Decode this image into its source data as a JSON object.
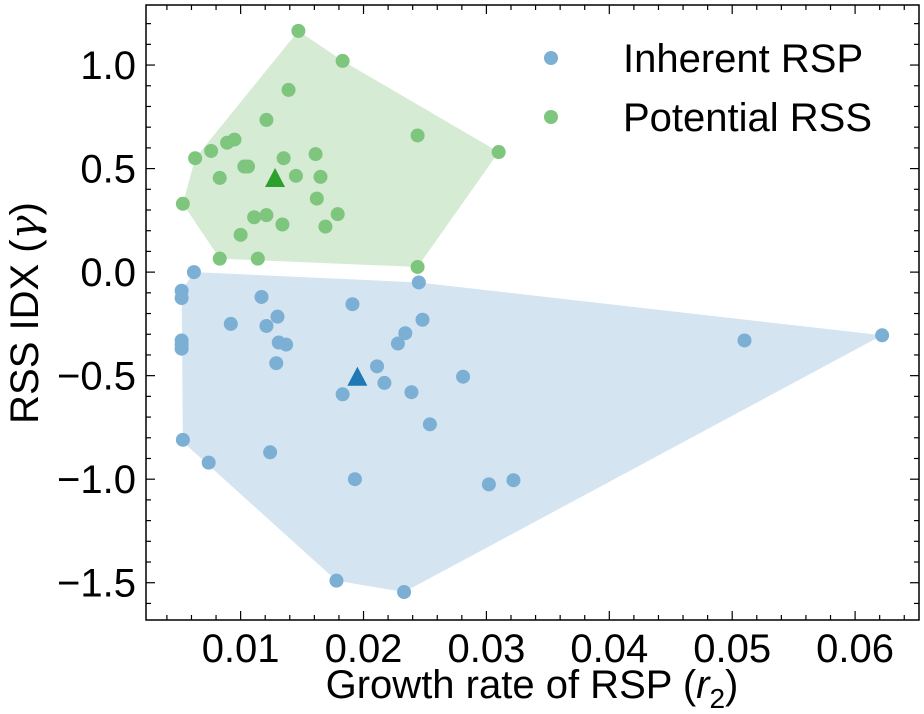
{
  "chart_data": {
    "type": "scatter",
    "xlabel": "Growth rate of RSP (r₂)",
    "xlabel_main": "Growth rate of RSP (",
    "xlabel_var": "r",
    "xlabel_sub": "2",
    "xlabel_close": ")",
    "ylabel": "RSS IDX (γ)",
    "ylabel_main": "RSS IDX (",
    "ylabel_var": "γ",
    "ylabel_close": ")",
    "xlim": [
      0.0023,
      0.0652
    ],
    "ylim": [
      -1.68,
      1.29
    ],
    "x_ticks": [
      0.01,
      0.02,
      0.03,
      0.04,
      0.05,
      0.06
    ],
    "x_tick_labels": [
      "0.01",
      "0.02",
      "0.03",
      "0.04",
      "0.05",
      "0.06"
    ],
    "y_ticks": [
      -1.5,
      -1.0,
      -0.5,
      0.0,
      0.5,
      1.0
    ],
    "y_tick_labels": [
      "−1.5",
      "−1.0",
      "−0.5",
      "0.0",
      "0.5",
      "1.0"
    ],
    "grid": false,
    "legend_position": "top-right",
    "series": [
      {
        "name": "Inherent RSP",
        "color": "#7bafd4",
        "hull_color": "#d4e4f1",
        "centroid_color": "#1f77b4",
        "centroid": [
          0.0195,
          -0.51
        ],
        "hull": [
          [
            0.0062,
            0.0
          ],
          [
            0.0245,
            -0.05
          ],
          [
            0.0622,
            -0.305
          ],
          [
            0.0233,
            -1.545
          ],
          [
            0.0178,
            -1.49
          ],
          [
            0.0053,
            -0.82
          ],
          [
            0.0052,
            -0.09
          ]
        ],
        "points": [
          [
            0.0062,
            0.0
          ],
          [
            0.0052,
            -0.09
          ],
          [
            0.0052,
            -0.125
          ],
          [
            0.0052,
            -0.33
          ],
          [
            0.0052,
            -0.35
          ],
          [
            0.0052,
            -0.37
          ],
          [
            0.0053,
            -0.81
          ],
          [
            0.0074,
            -0.92
          ],
          [
            0.0092,
            -0.25
          ],
          [
            0.0117,
            -0.12
          ],
          [
            0.0121,
            -0.26
          ],
          [
            0.0124,
            -0.87
          ],
          [
            0.0129,
            -0.44
          ],
          [
            0.013,
            -0.215
          ],
          [
            0.0131,
            -0.34
          ],
          [
            0.0137,
            -0.35
          ],
          [
            0.0178,
            -1.49
          ],
          [
            0.0183,
            -0.59
          ],
          [
            0.0191,
            -0.155
          ],
          [
            0.0193,
            -1.0
          ],
          [
            0.0211,
            -0.455
          ],
          [
            0.0217,
            -0.535
          ],
          [
            0.0228,
            -0.345
          ],
          [
            0.0234,
            -0.295
          ],
          [
            0.0233,
            -1.545
          ],
          [
            0.0239,
            -0.58
          ],
          [
            0.0245,
            -0.05
          ],
          [
            0.0248,
            -0.23
          ],
          [
            0.0254,
            -0.735
          ],
          [
            0.0281,
            -0.505
          ],
          [
            0.0302,
            -1.025
          ],
          [
            0.0322,
            -1.005
          ],
          [
            0.051,
            -0.33
          ],
          [
            0.0622,
            -0.305
          ]
        ]
      },
      {
        "name": "Potential RSS",
        "color": "#7ec57e",
        "hull_color": "#d5ebd4",
        "centroid_color": "#2ca02c",
        "centroid": [
          0.0128,
          0.45
        ],
        "hull": [
          [
            0.0147,
            1.165
          ],
          [
            0.0183,
            1.02
          ],
          [
            0.031,
            0.58
          ],
          [
            0.0244,
            0.025
          ],
          [
            0.0083,
            0.065
          ],
          [
            0.0053,
            0.33
          ],
          [
            0.0063,
            0.55
          ]
        ],
        "points": [
          [
            0.0147,
            1.165
          ],
          [
            0.0183,
            1.02
          ],
          [
            0.0139,
            0.88
          ],
          [
            0.0121,
            0.735
          ],
          [
            0.0244,
            0.66
          ],
          [
            0.0095,
            0.64
          ],
          [
            0.0089,
            0.625
          ],
          [
            0.0076,
            0.585
          ],
          [
            0.0063,
            0.55
          ],
          [
            0.0161,
            0.57
          ],
          [
            0.0135,
            0.55
          ],
          [
            0.031,
            0.58
          ],
          [
            0.0103,
            0.51
          ],
          [
            0.0106,
            0.51
          ],
          [
            0.0083,
            0.455
          ],
          [
            0.0145,
            0.465
          ],
          [
            0.0165,
            0.46
          ],
          [
            0.0053,
            0.33
          ],
          [
            0.0162,
            0.355
          ],
          [
            0.0111,
            0.265
          ],
          [
            0.0121,
            0.275
          ],
          [
            0.0179,
            0.28
          ],
          [
            0.0134,
            0.23
          ],
          [
            0.0169,
            0.22
          ],
          [
            0.01,
            0.18
          ],
          [
            0.0114,
            0.065
          ],
          [
            0.0083,
            0.065
          ],
          [
            0.0244,
            0.025
          ]
        ]
      }
    ]
  }
}
